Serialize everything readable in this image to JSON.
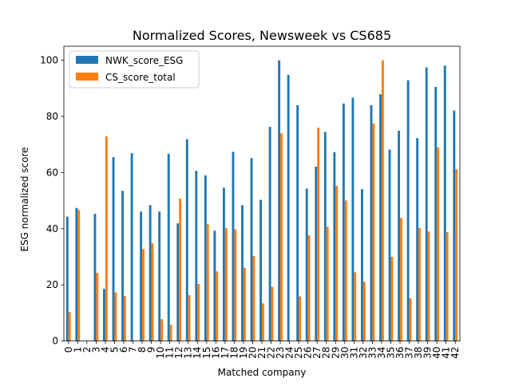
{
  "chart_data": {
    "type": "bar",
    "title": "Normalized Scores, Newsweek vs CS685",
    "xlabel": "Matched company",
    "ylabel": "ESG normalized score",
    "ylim": [
      0,
      105
    ],
    "yticks": [
      0,
      20,
      40,
      60,
      80,
      100
    ],
    "grid": false,
    "legend_position": "top-left",
    "categories": [
      "0",
      "1",
      "2",
      "3",
      "4",
      "5",
      "6",
      "7",
      "8",
      "9",
      "10",
      "11",
      "12",
      "13",
      "14",
      "15",
      "16",
      "17",
      "18",
      "19",
      "20",
      "21",
      "22",
      "23",
      "24",
      "25",
      "26",
      "27",
      "28",
      "29",
      "30",
      "31",
      "32",
      "33",
      "34",
      "35",
      "36",
      "37",
      "38",
      "39",
      "40",
      "41",
      "42"
    ],
    "series": [
      {
        "name": "NWK_score_ESG",
        "color": "#1f77b4",
        "values": [
          44.3,
          47.4,
          0,
          45.3,
          18.6,
          65.5,
          53.5,
          66.9,
          46.1,
          48.4,
          46.1,
          66.7,
          41.9,
          71.9,
          60.6,
          59.0,
          39.3,
          54.6,
          67.4,
          48.4,
          65.2,
          50.3,
          76.3,
          100.0,
          94.8,
          84.0,
          54.3,
          62.1,
          74.5,
          67.3,
          84.6,
          86.7,
          54.1,
          84.0,
          87.9,
          68.2,
          74.9,
          92.9,
          72.3,
          97.5,
          90.5,
          98.1,
          82.1
        ]
      },
      {
        "name": "CS_score_total",
        "color": "#ff7f0e",
        "values": [
          10.3,
          46.7,
          0,
          24.3,
          72.9,
          17.3,
          16.0,
          0,
          32.8,
          34.8,
          7.8,
          5.8,
          50.7,
          16.3,
          20.3,
          41.6,
          24.8,
          40.2,
          39.8,
          26.1,
          30.3,
          13.4,
          19.3,
          74.0,
          0,
          15.9,
          37.7,
          76.0,
          40.7,
          55.3,
          50.1,
          24.5,
          21.1,
          77.5,
          100.0,
          30.0,
          43.8,
          15.2,
          40.2,
          39.0,
          69.0,
          38.8,
          61.2
        ]
      }
    ]
  }
}
